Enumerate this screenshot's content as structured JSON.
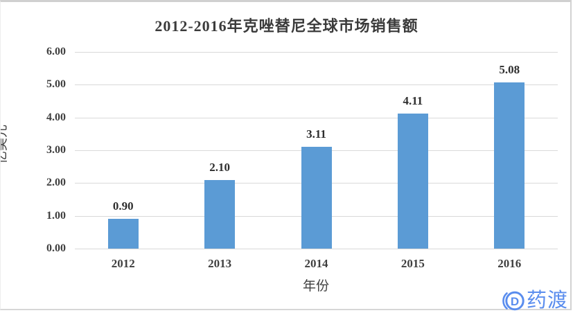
{
  "chart_data": {
    "type": "bar",
    "title": "2012-2016年克唑替尼全球市场销售额",
    "categories": [
      "2012",
      "2013",
      "2014",
      "2015",
      "2016"
    ],
    "values": [
      0.9,
      2.1,
      3.11,
      4.11,
      5.08
    ],
    "value_labels": [
      "0.90",
      "2.10",
      "3.11",
      "4.11",
      "5.08"
    ],
    "xlabel": "年份",
    "ylabel": "亿美元",
    "ylim": [
      0,
      6
    ],
    "ytick_step": 1,
    "ytick_labels": [
      "0.00",
      "1.00",
      "2.00",
      "3.00",
      "4.00",
      "5.00",
      "6.00"
    ],
    "grid": true,
    "legend": "none",
    "bar_color": "#5B9BD5",
    "gridline_color": "#D9D9D9",
    "text_color": "#3F3F3F"
  },
  "watermark": {
    "logo_icon": "pharmacodia-circle-d-icon",
    "logo_letter": "D",
    "text": "药渡",
    "color": "#5A8DEE"
  }
}
